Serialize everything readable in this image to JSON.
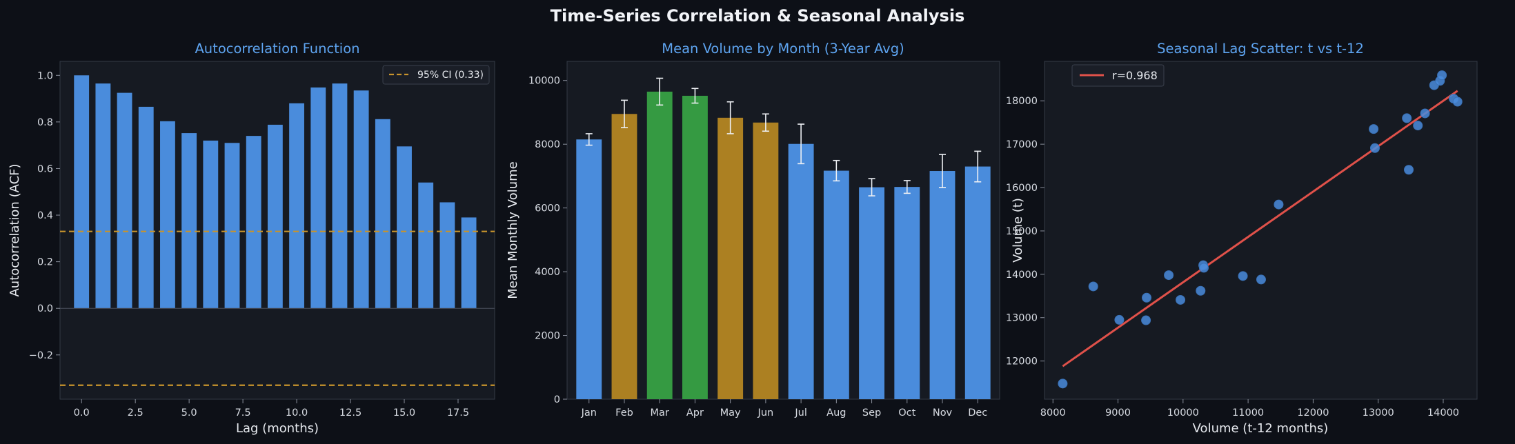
{
  "figure": {
    "title": "Time-Series Correlation & Seasonal Analysis"
  },
  "colors": {
    "background": "#0d1017",
    "panel": "#161a22",
    "blue": "#4a8cdc",
    "amber": "#ac8022",
    "green": "#359a42",
    "ci_line": "#c8942c",
    "fit_line": "#e0514a",
    "title_blue": "#5ea4f0"
  },
  "chart_data": [
    {
      "type": "bar",
      "title": "Autocorrelation Function",
      "xlabel": "Lag (months)",
      "ylabel": "Autocorrelation (ACF)",
      "x": [
        0,
        1,
        2,
        3,
        4,
        5,
        6,
        7,
        8,
        9,
        10,
        11,
        12,
        13,
        14,
        15,
        16,
        17,
        18
      ],
      "values": [
        1.0,
        0.965,
        0.925,
        0.865,
        0.803,
        0.752,
        0.72,
        0.71,
        0.74,
        0.788,
        0.88,
        0.948,
        0.965,
        0.935,
        0.812,
        0.695,
        0.54,
        0.455,
        0.39
      ],
      "xlim": [
        -1,
        19.2
      ],
      "ylim": [
        -0.39,
        1.06
      ],
      "xticks": [
        0.0,
        2.5,
        5.0,
        7.5,
        10.0,
        12.5,
        15.0,
        17.5
      ],
      "xtick_labels": [
        "0.0",
        "2.5",
        "5.0",
        "7.5",
        "10.0",
        "12.5",
        "15.0",
        "17.5"
      ],
      "yticks": [
        -0.2,
        0.0,
        0.2,
        0.4,
        0.6,
        0.8,
        1.0
      ],
      "ytick_labels": [
        "−0.2",
        "0.0",
        "0.2",
        "0.4",
        "0.6",
        "0.8",
        "1.0"
      ],
      "ci": 0.33,
      "legend": {
        "label": "95% CI (0.33)",
        "position": "top-right"
      },
      "grid": false
    },
    {
      "type": "bar",
      "title": "Mean Volume by Month (3-Year Avg)",
      "xlabel": "",
      "ylabel": "Mean Monthly Volume",
      "categories": [
        "Jan",
        "Feb",
        "Mar",
        "Apr",
        "May",
        "Jun",
        "Jul",
        "Aug",
        "Sep",
        "Oct",
        "Nov",
        "Dec"
      ],
      "values": [
        8150,
        8950,
        9650,
        9520,
        8830,
        8680,
        8010,
        7170,
        6650,
        6660,
        7160,
        7300
      ],
      "errors": [
        180,
        430,
        420,
        230,
        500,
        270,
        620,
        320,
        270,
        200,
        520,
        480
      ],
      "bar_color_keys": [
        "blue",
        "amber",
        "green",
        "green",
        "amber",
        "amber",
        "blue",
        "blue",
        "blue",
        "blue",
        "blue",
        "blue"
      ],
      "ylim": [
        0,
        10600
      ],
      "yticks": [
        0,
        2000,
        4000,
        6000,
        8000,
        10000
      ],
      "ytick_labels": [
        "0",
        "2000",
        "4000",
        "6000",
        "8000",
        "10000"
      ],
      "grid": false
    },
    {
      "type": "scatter",
      "title": "Seasonal Lag Scatter: t vs t-12",
      "xlabel": "Volume (t-12 months)",
      "ylabel": "Volume (t)",
      "points": [
        [
          8150,
          11480
        ],
        [
          8620,
          13720
        ],
        [
          9020,
          12950
        ],
        [
          9430,
          12940
        ],
        [
          9440,
          13460
        ],
        [
          9780,
          13980
        ],
        [
          9960,
          13410
        ],
        [
          10270,
          13620
        ],
        [
          10310,
          14210
        ],
        [
          10320,
          14150
        ],
        [
          10920,
          13960
        ],
        [
          11200,
          13880
        ],
        [
          11470,
          15610
        ],
        [
          12930,
          17350
        ],
        [
          12950,
          16910
        ],
        [
          13440,
          17600
        ],
        [
          13470,
          16410
        ],
        [
          13610,
          17430
        ],
        [
          13720,
          17710
        ],
        [
          13860,
          18360
        ],
        [
          13950,
          18460
        ],
        [
          13980,
          18590
        ],
        [
          14160,
          18050
        ],
        [
          14220,
          17980
        ]
      ],
      "fit": {
        "x": [
          8150,
          14220
        ],
        "y": [
          11880,
          18230
        ]
      },
      "xlim": [
        7870,
        14520
      ],
      "ylim": [
        11120,
        18910
      ],
      "xticks": [
        8000,
        9000,
        10000,
        11000,
        12000,
        13000,
        14000
      ],
      "xtick_labels": [
        "8000",
        "9000",
        "10000",
        "11000",
        "12000",
        "13000",
        "14000"
      ],
      "yticks": [
        12000,
        13000,
        14000,
        15000,
        16000,
        17000,
        18000
      ],
      "ytick_labels": [
        "12000",
        "13000",
        "14000",
        "15000",
        "16000",
        "17000",
        "18000"
      ],
      "legend": {
        "label": "r=0.968",
        "position": "top-left"
      },
      "grid": false
    }
  ]
}
